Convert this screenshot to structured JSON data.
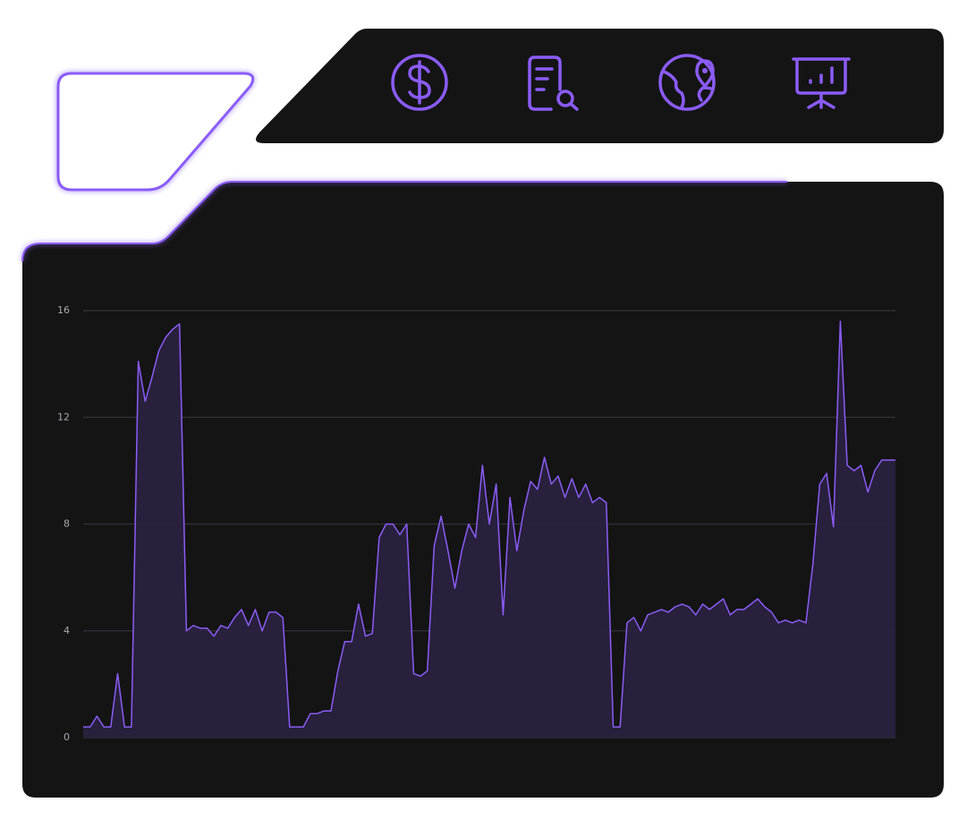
{
  "chart_data": {
    "type": "area",
    "values": [
      0.4,
      0.4,
      0.8,
      0.4,
      0.4,
      2.4,
      0.4,
      0.4,
      14.1,
      12.6,
      13.5,
      14.5,
      15.0,
      15.3,
      15.5,
      4.0,
      4.2,
      4.1,
      4.1,
      3.8,
      4.2,
      4.1,
      4.5,
      4.8,
      4.2,
      4.8,
      4.0,
      4.7,
      4.7,
      4.5,
      0.4,
      0.4,
      0.4,
      0.9,
      0.9,
      1.0,
      1.0,
      2.5,
      3.6,
      3.6,
      5.0,
      3.8,
      3.9,
      7.5,
      8.0,
      8.0,
      7.6,
      8.0,
      2.4,
      2.3,
      2.5,
      7.2,
      8.3,
      7.0,
      5.6,
      7.0,
      8.0,
      7.5,
      10.2,
      8.0,
      9.5,
      4.6,
      9.0,
      7.0,
      8.5,
      9.6,
      9.3,
      10.5,
      9.5,
      9.8,
      9.0,
      9.7,
      9.0,
      9.5,
      8.8,
      9.0,
      8.8,
      0.4,
      0.4,
      4.3,
      4.5,
      4.0,
      4.6,
      4.7,
      4.8,
      4.7,
      4.9,
      5.0,
      4.9,
      4.6,
      5.0,
      4.8,
      5.0,
      5.2,
      4.6,
      4.8,
      4.8,
      5.0,
      5.2,
      4.9,
      4.7,
      4.3,
      4.4,
      4.3,
      4.4,
      4.3,
      6.5,
      9.5,
      9.9,
      7.9,
      15.6,
      10.2,
      10.0,
      10.2,
      9.2,
      10.0,
      10.4,
      10.4,
      10.4
    ],
    "color": "#8b5cf6",
    "fill": "#2a2140",
    "ylim": [
      0,
      16
    ],
    "yticks": [
      0,
      4,
      8,
      12,
      16
    ],
    "grid": true
  }
}
